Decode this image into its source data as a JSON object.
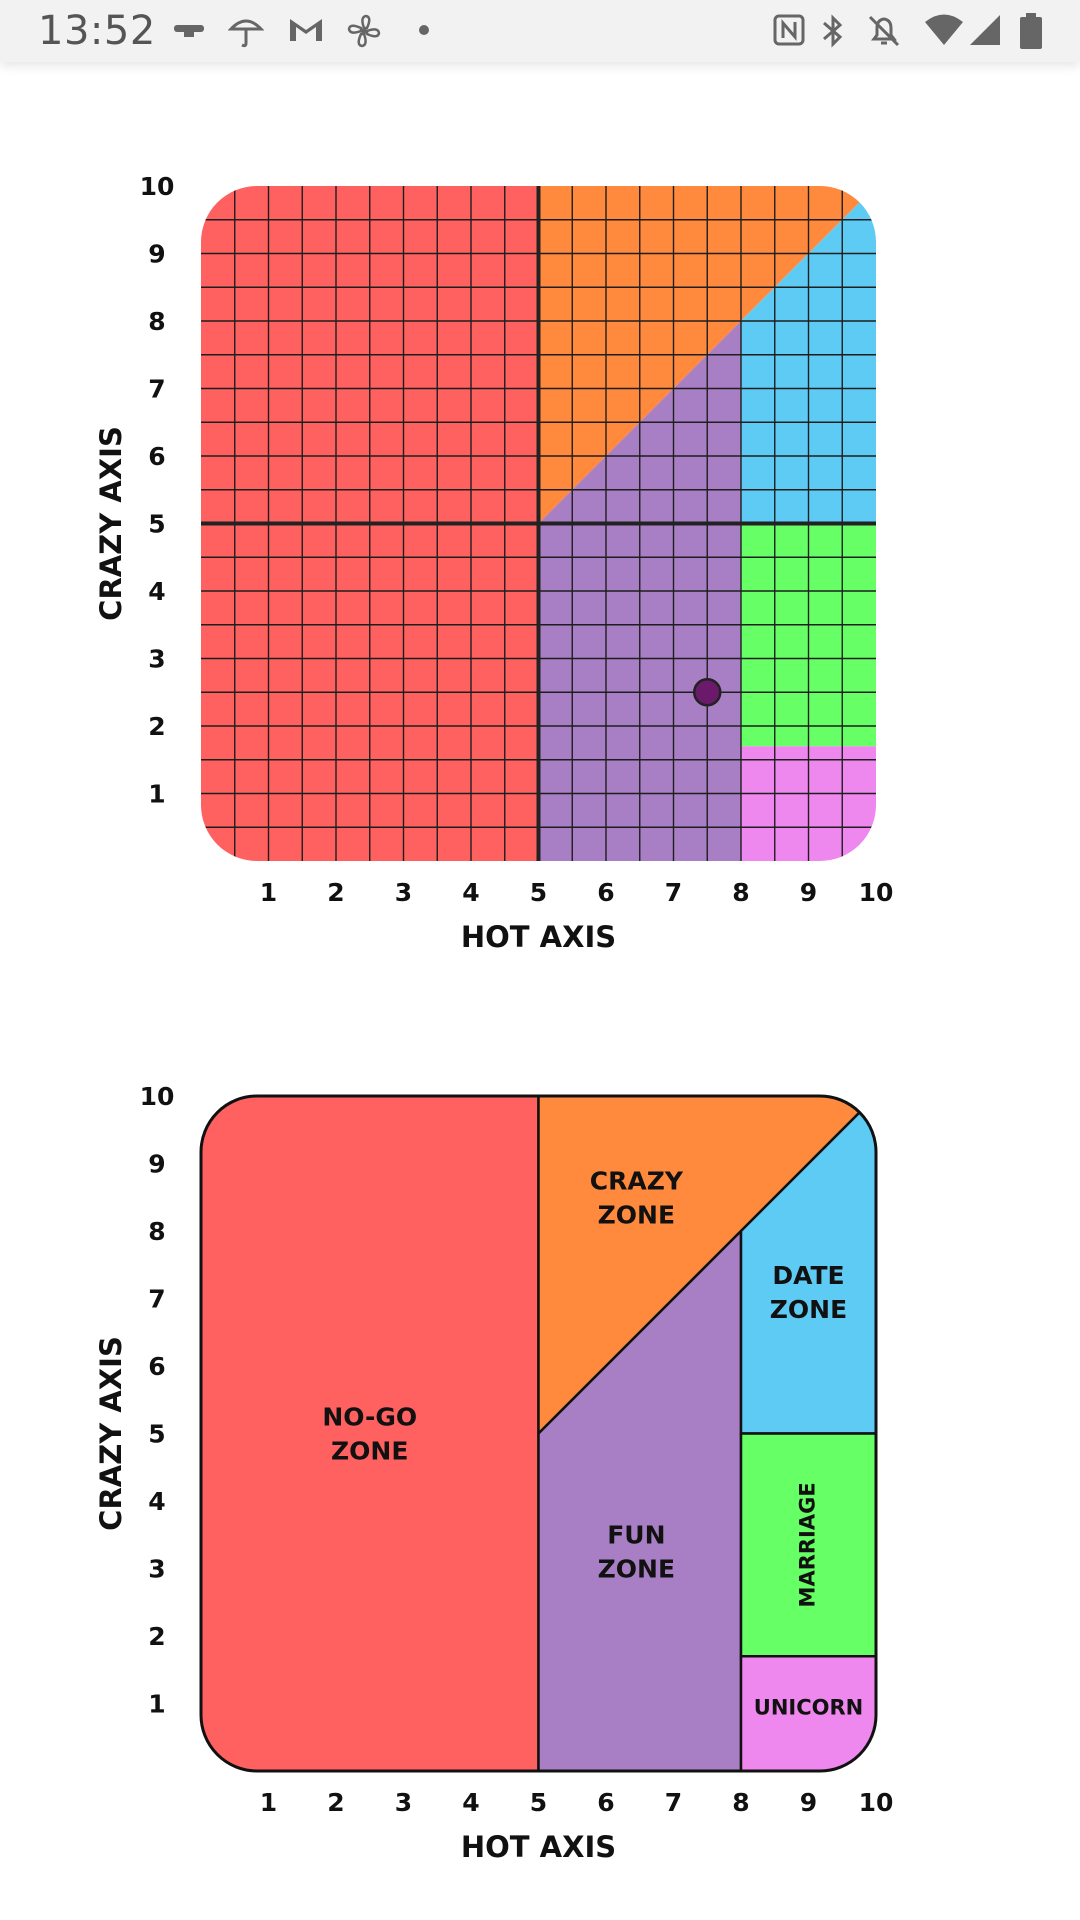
{
  "status_bar": {
    "time": "13:52",
    "left_icons": [
      "ethernet-icon",
      "umbrella-icon",
      "gmail-icon",
      "fan-icon",
      "dot-icon"
    ],
    "right_icons": [
      "nfc-icon",
      "bluetooth-icon",
      "bell-off-icon",
      "wifi-icon",
      "signal-icon",
      "battery-icon"
    ]
  },
  "chart_data": [
    {
      "type": "scatter",
      "xlabel": "HOT AXIS",
      "ylabel": "CRAZY AXIS",
      "xlim": [
        0,
        10
      ],
      "ylim": [
        0,
        10
      ],
      "xticks": [
        "1",
        "2",
        "3",
        "4",
        "5",
        "6",
        "7",
        "8",
        "9",
        "10"
      ],
      "yticks": [
        "1",
        "2",
        "3",
        "4",
        "5",
        "6",
        "7",
        "8",
        "9",
        "10"
      ],
      "grid": true,
      "point": {
        "x": 7.5,
        "y": 2.5,
        "color": "#6b1a6b"
      },
      "zones": [
        {
          "id": "no-go",
          "color": "#ff6060",
          "polygon": [
            [
              0,
              0
            ],
            [
              5,
              0
            ],
            [
              5,
              10
            ],
            [
              0,
              10
            ]
          ]
        },
        {
          "id": "crazy",
          "color": "#ff8a3d",
          "polygon": [
            [
              5,
              5
            ],
            [
              5,
              10
            ],
            [
              10,
              10
            ]
          ]
        },
        {
          "id": "fun",
          "color": "#a87fc4",
          "polygon": [
            [
              5,
              0
            ],
            [
              8,
              0
            ],
            [
              8,
              8
            ],
            [
              5,
              5
            ]
          ]
        },
        {
          "id": "date",
          "color": "#5ecbf5",
          "polygon": [
            [
              8,
              5
            ],
            [
              10,
              5
            ],
            [
              10,
              10
            ],
            [
              8,
              8
            ]
          ]
        },
        {
          "id": "marriage",
          "color": "#66ff66",
          "polygon": [
            [
              8,
              1.7
            ],
            [
              10,
              1.7
            ],
            [
              10,
              5
            ],
            [
              8,
              5
            ]
          ]
        },
        {
          "id": "unicorn",
          "color": "#ee88ee",
          "polygon": [
            [
              8,
              0
            ],
            [
              10,
              0
            ],
            [
              10,
              1.7
            ],
            [
              8,
              1.7
            ]
          ]
        }
      ]
    },
    {
      "type": "area",
      "xlabel": "HOT AXIS",
      "ylabel": "CRAZY AXIS",
      "xlim": [
        0,
        10
      ],
      "ylim": [
        0,
        10
      ],
      "xticks": [
        "1",
        "2",
        "3",
        "4",
        "5",
        "6",
        "7",
        "8",
        "9",
        "10"
      ],
      "yticks": [
        "1",
        "2",
        "3",
        "4",
        "5",
        "6",
        "7",
        "8",
        "9",
        "10"
      ],
      "grid": false,
      "zones": [
        {
          "id": "no-go",
          "color": "#ff6060",
          "polygon": [
            [
              0,
              0
            ],
            [
              5,
              0
            ],
            [
              5,
              10
            ],
            [
              0,
              10
            ]
          ],
          "label": [
            "NO-GO",
            "ZONE"
          ],
          "label_pos": [
            2.5,
            5
          ]
        },
        {
          "id": "crazy",
          "color": "#ff8a3d",
          "polygon": [
            [
              5,
              5
            ],
            [
              5,
              10
            ],
            [
              10,
              10
            ]
          ],
          "label": [
            "CRAZY",
            "ZONE"
          ],
          "label_pos": [
            6.45,
            8.5
          ]
        },
        {
          "id": "fun",
          "color": "#a87fc4",
          "polygon": [
            [
              5,
              0
            ],
            [
              8,
              0
            ],
            [
              8,
              8
            ],
            [
              5,
              5
            ]
          ],
          "label": [
            "FUN",
            "ZONE"
          ],
          "label_pos": [
            6.45,
            3.25
          ]
        },
        {
          "id": "date",
          "color": "#5ecbf5",
          "polygon": [
            [
              8,
              5
            ],
            [
              10,
              5
            ],
            [
              10,
              10
            ],
            [
              8,
              8
            ]
          ],
          "label": [
            "DATE",
            "ZONE"
          ],
          "label_pos": [
            9,
            7.1
          ]
        },
        {
          "id": "marriage",
          "color": "#66ff66",
          "polygon": [
            [
              8,
              1.7
            ],
            [
              10,
              1.7
            ],
            [
              10,
              5
            ],
            [
              8,
              5
            ]
          ],
          "label": [
            "MARRIAGE"
          ],
          "label_pos": [
            9,
            3.35
          ],
          "vertical": true
        },
        {
          "id": "unicorn",
          "color": "#ee88ee",
          "polygon": [
            [
              8,
              0
            ],
            [
              10,
              0
            ],
            [
              10,
              1.7
            ],
            [
              8,
              1.7
            ]
          ],
          "label": [
            "UNICORN"
          ],
          "label_pos": [
            9,
            0.95
          ]
        }
      ]
    }
  ]
}
